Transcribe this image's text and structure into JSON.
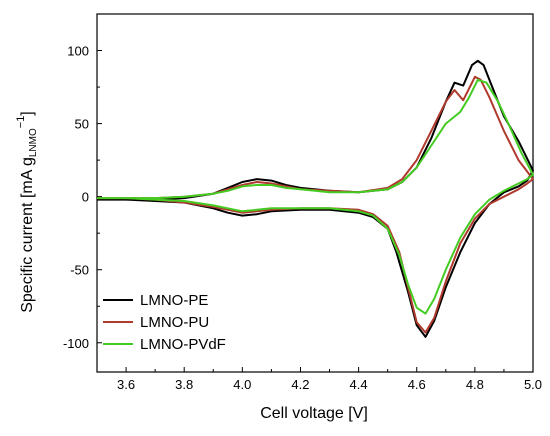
{
  "chart_data": {
    "type": "line",
    "title": "",
    "xlabel": "Cell voltage [V]",
    "ylabel": {
      "prefix": "Specific current  [mA g",
      "subscript": "LNMO",
      "suffix_main": "",
      "superscript": "−1",
      "suffix": "]"
    },
    "xlim": [
      3.5,
      5.0
    ],
    "ylim": [
      -120,
      125
    ],
    "xticks": [
      "3.6",
      "3.8",
      "4.0",
      "4.2",
      "4.4",
      "4.6",
      "4.8",
      "5.0"
    ],
    "xtick_values": [
      3.6,
      3.8,
      4.0,
      4.2,
      4.4,
      4.6,
      4.8,
      5.0
    ],
    "yticks": [
      "100",
      "50",
      "0",
      "-50",
      "-100"
    ],
    "ytick_values": [
      100,
      50,
      0,
      -50,
      -100
    ],
    "grid": false,
    "legend_position": "bottom-left",
    "series": [
      {
        "name": "LMNO-PE",
        "color": "#000000",
        "points": [
          [
            3.5,
            -2
          ],
          [
            3.6,
            -2
          ],
          [
            3.7,
            -2
          ],
          [
            3.8,
            -1
          ],
          [
            3.9,
            2
          ],
          [
            3.95,
            6
          ],
          [
            4.0,
            10
          ],
          [
            4.05,
            12
          ],
          [
            4.1,
            11
          ],
          [
            4.15,
            8
          ],
          [
            4.2,
            6
          ],
          [
            4.3,
            4
          ],
          [
            4.4,
            3
          ],
          [
            4.5,
            5
          ],
          [
            4.55,
            10
          ],
          [
            4.6,
            20
          ],
          [
            4.65,
            40
          ],
          [
            4.7,
            65
          ],
          [
            4.73,
            78
          ],
          [
            4.76,
            76
          ],
          [
            4.79,
            90
          ],
          [
            4.81,
            93
          ],
          [
            4.83,
            90
          ],
          [
            4.86,
            75
          ],
          [
            4.9,
            55
          ],
          [
            4.95,
            38
          ],
          [
            5.0,
            18
          ],
          [
            4.98,
            11
          ],
          [
            4.95,
            7
          ],
          [
            4.9,
            3
          ],
          [
            4.85,
            -5
          ],
          [
            4.8,
            -18
          ],
          [
            4.75,
            -38
          ],
          [
            4.7,
            -62
          ],
          [
            4.66,
            -85
          ],
          [
            4.63,
            -96
          ],
          [
            4.6,
            -88
          ],
          [
            4.57,
            -65
          ],
          [
            4.53,
            -38
          ],
          [
            4.5,
            -22
          ],
          [
            4.45,
            -14
          ],
          [
            4.4,
            -11
          ],
          [
            4.3,
            -9
          ],
          [
            4.2,
            -9
          ],
          [
            4.1,
            -10
          ],
          [
            4.05,
            -12
          ],
          [
            4.0,
            -13
          ],
          [
            3.95,
            -11
          ],
          [
            3.9,
            -8
          ],
          [
            3.8,
            -4
          ],
          [
            3.7,
            -3
          ],
          [
            3.6,
            -2
          ],
          [
            3.5,
            -2
          ]
        ]
      },
      {
        "name": "LMNO-PU",
        "color": "#b03a2e",
        "points": [
          [
            3.5,
            -1
          ],
          [
            3.6,
            -1
          ],
          [
            3.7,
            -1
          ],
          [
            3.8,
            0
          ],
          [
            3.9,
            2
          ],
          [
            3.95,
            5
          ],
          [
            4.0,
            8
          ],
          [
            4.05,
            10
          ],
          [
            4.1,
            9
          ],
          [
            4.15,
            7
          ],
          [
            4.2,
            5
          ],
          [
            4.3,
            4
          ],
          [
            4.4,
            3
          ],
          [
            4.5,
            6
          ],
          [
            4.55,
            12
          ],
          [
            4.6,
            25
          ],
          [
            4.65,
            45
          ],
          [
            4.7,
            65
          ],
          [
            4.73,
            73
          ],
          [
            4.76,
            66
          ],
          [
            4.78,
            74
          ],
          [
            4.8,
            82
          ],
          [
            4.82,
            80
          ],
          [
            4.85,
            68
          ],
          [
            4.9,
            45
          ],
          [
            4.95,
            25
          ],
          [
            5.0,
            12
          ],
          [
            4.98,
            9
          ],
          [
            4.95,
            5
          ],
          [
            4.9,
            0
          ],
          [
            4.85,
            -5
          ],
          [
            4.8,
            -15
          ],
          [
            4.75,
            -32
          ],
          [
            4.7,
            -58
          ],
          [
            4.66,
            -83
          ],
          [
            4.63,
            -93
          ],
          [
            4.6,
            -86
          ],
          [
            4.57,
            -62
          ],
          [
            4.54,
            -38
          ],
          [
            4.5,
            -20
          ],
          [
            4.45,
            -12
          ],
          [
            4.4,
            -9
          ],
          [
            4.3,
            -8
          ],
          [
            4.2,
            -8
          ],
          [
            4.1,
            -9
          ],
          [
            4.05,
            -10
          ],
          [
            4.0,
            -11
          ],
          [
            3.95,
            -9
          ],
          [
            3.9,
            -7
          ],
          [
            3.8,
            -4
          ],
          [
            3.7,
            -2
          ],
          [
            3.6,
            -1
          ],
          [
            3.5,
            -1
          ]
        ]
      },
      {
        "name": "LMNO-PVdF",
        "color": "#44cc22",
        "points": [
          [
            3.5,
            -1
          ],
          [
            3.6,
            -1
          ],
          [
            3.7,
            -1
          ],
          [
            3.8,
            0
          ],
          [
            3.9,
            2
          ],
          [
            3.95,
            4
          ],
          [
            4.0,
            7
          ],
          [
            4.05,
            8
          ],
          [
            4.1,
            8
          ],
          [
            4.15,
            6
          ],
          [
            4.2,
            5
          ],
          [
            4.3,
            3
          ],
          [
            4.4,
            3
          ],
          [
            4.5,
            5
          ],
          [
            4.55,
            10
          ],
          [
            4.6,
            20
          ],
          [
            4.65,
            35
          ],
          [
            4.7,
            50
          ],
          [
            4.75,
            58
          ],
          [
            4.78,
            68
          ],
          [
            4.81,
            80
          ],
          [
            4.84,
            78
          ],
          [
            4.88,
            65
          ],
          [
            4.92,
            48
          ],
          [
            4.96,
            30
          ],
          [
            5.0,
            15
          ],
          [
            4.98,
            12
          ],
          [
            4.95,
            9
          ],
          [
            4.9,
            4
          ],
          [
            4.85,
            -2
          ],
          [
            4.8,
            -12
          ],
          [
            4.75,
            -28
          ],
          [
            4.7,
            -50
          ],
          [
            4.66,
            -70
          ],
          [
            4.63,
            -80
          ],
          [
            4.6,
            -76
          ],
          [
            4.57,
            -60
          ],
          [
            4.54,
            -40
          ],
          [
            4.5,
            -22
          ],
          [
            4.45,
            -13
          ],
          [
            4.4,
            -10
          ],
          [
            4.3,
            -8
          ],
          [
            4.2,
            -8
          ],
          [
            4.1,
            -8
          ],
          [
            4.05,
            -9
          ],
          [
            4.0,
            -10
          ],
          [
            3.95,
            -8
          ],
          [
            3.9,
            -6
          ],
          [
            3.8,
            -3
          ],
          [
            3.7,
            -2
          ],
          [
            3.6,
            -1
          ],
          [
            3.5,
            -1
          ]
        ]
      }
    ]
  }
}
